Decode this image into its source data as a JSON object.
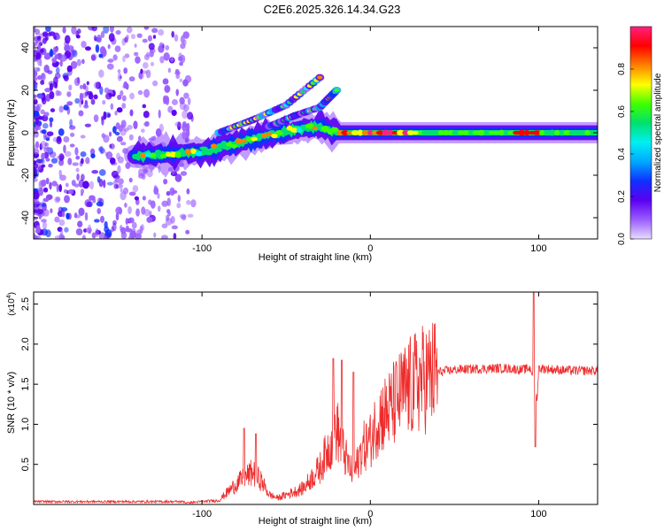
{
  "title": "C2E6.2025.326.14.34.G23",
  "chart_data": [
    {
      "type": "heatmap",
      "title": "C2E6.2025.326.14.34.G23",
      "xlabel": "Height of straight line (km)",
      "ylabel": "Frequency (Hz)",
      "xlim": [
        -200,
        135
      ],
      "ylim": [
        -50,
        50
      ],
      "xticks": [
        -100,
        0,
        100
      ],
      "xtick_labels": [
        "-100",
        "0",
        "100"
      ],
      "yticks": [
        -40,
        -20,
        0,
        20,
        40
      ],
      "ytick_labels": [
        "-40",
        "-20",
        "0",
        "20",
        "40"
      ],
      "colorbar": {
        "label": "Normalized spectral amplitude",
        "range": [
          0,
          1
        ],
        "ticks": [
          0,
          0.2,
          0.4,
          0.6,
          0.8
        ],
        "tick_labels": [
          "0.0",
          "0.2",
          "0.4",
          "0.6",
          "0.8"
        ],
        "colormap": [
          "#e8dcff",
          "#9a5cff",
          "#5a00f0",
          "#1030ff",
          "#00a8ff",
          "#00f0f0",
          "#00e070",
          "#40ff00",
          "#ffff00",
          "#ff8000",
          "#ff0000",
          "#ff2080"
        ]
      },
      "ridge": {
        "description_points_x": [
          -140,
          -120,
          -100,
          -80,
          -60,
          -40,
          -30,
          -20,
          0,
          50,
          100,
          135
        ],
        "center_frequency_hz": [
          -11,
          -10,
          -9,
          -5,
          -1,
          2,
          3,
          0,
          0,
          0,
          0,
          0
        ]
      },
      "branches": [
        {
          "x": [
            -90,
            -70,
            -50,
            -30
          ],
          "frequency_hz": [
            0,
            6,
            13,
            26
          ]
        },
        {
          "x": [
            -60,
            -45,
            -30,
            -20
          ],
          "frequency_hz": [
            3,
            8,
            12,
            20
          ]
        }
      ]
    },
    {
      "type": "line",
      "title": "",
      "xlabel": "Height of straight line (km)",
      "ylabel": "SNR (10 * v/v)",
      "y_scale_label": "(x10",
      "y_scale_exponent": "4",
      "xlim": [
        -200,
        135
      ],
      "ylim": [
        0,
        2.65
      ],
      "xticks": [
        -100,
        0,
        100
      ],
      "xtick_labels": [
        "-100",
        "0",
        "100"
      ],
      "yticks": [
        0.5,
        1.0,
        1.5,
        2.0,
        2.5
      ],
      "ytick_labels": [
        "0.5",
        "1.0",
        "1.5",
        "2.0",
        "2.5"
      ],
      "color": "#ee2c2c",
      "envelope": {
        "x": [
          -200,
          -150,
          -110,
          -90,
          -80,
          -70,
          -65,
          -60,
          -55,
          -40,
          -30,
          -25,
          -20,
          -15,
          -10,
          -5,
          0,
          5,
          10,
          20,
          30,
          40,
          50,
          60,
          80,
          90,
          95,
          97,
          99,
          100,
          110,
          120,
          135
        ],
        "values": [
          0.02,
          0.02,
          0.02,
          0.05,
          0.25,
          0.4,
          0.3,
          0.12,
          0.08,
          0.2,
          0.45,
          0.7,
          0.95,
          0.6,
          0.35,
          0.7,
          0.8,
          1.1,
          1.15,
          1.4,
          1.55,
          1.65,
          1.68,
          1.69,
          1.7,
          1.68,
          1.7,
          1.6,
          1.3,
          1.7,
          1.68,
          1.67,
          1.67
        ]
      },
      "peaks": [
        {
          "x": -75,
          "value": 0.95
        },
        {
          "x": -68,
          "value": 0.88
        },
        {
          "x": -22,
          "value": 1.82
        },
        {
          "x": -17,
          "value": 1.8
        },
        {
          "x": -10,
          "value": 1.65
        },
        {
          "x": 97,
          "value": 2.65
        },
        {
          "x": 98,
          "value": 0.72
        }
      ]
    }
  ]
}
